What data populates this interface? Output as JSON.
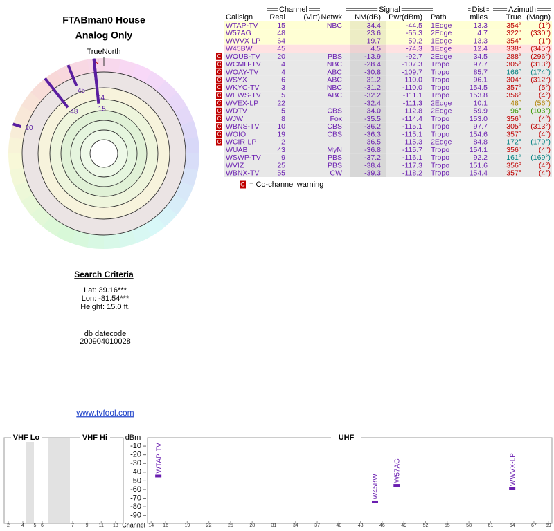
{
  "header": {
    "title": "FTABman0 House",
    "subtitle": "Analog Only"
  },
  "polar": {
    "north_label": "TrueNorth",
    "north": "N",
    "color": "#5a1ea0",
    "spokes": [
      {
        "label": "20",
        "azimuth": 288,
        "nm": -13.9
      },
      {
        "label": "48",
        "azimuth": 322,
        "nm": 23.6
      },
      {
        "label": "45",
        "azimuth": 338,
        "nm": 4.5
      },
      {
        "label": "64",
        "azimuth": 354,
        "nm": 19.7
      },
      {
        "label": "15",
        "azimuth": 354,
        "nm": 34.4
      }
    ]
  },
  "search": {
    "title": "Search Criteria",
    "lat": "Lat: 39.16***",
    "lon": "Lon: -81.54***",
    "height": "Height: 15.0 ft.",
    "datecode_label": "db datecode",
    "datecode": "200904010028",
    "link": "www.tvfool.com"
  },
  "table": {
    "groups": {
      "channel": "Channel",
      "signal": "Signal",
      "dist": "Dist",
      "azimuth": "Azimuth"
    },
    "columns": {
      "callsign": "Callsign",
      "real": "Real",
      "virt": "(Virt)",
      "netwk": "Netwk",
      "nm": "NM(dB)",
      "pwr": "Pwr(dBm)",
      "path": "Path",
      "dist": "miles",
      "true": "True",
      "magn": "(Magn)"
    },
    "rows": [
      {
        "callsign": "WTAP-TV",
        "real": "15",
        "netwk": "NBC",
        "nm": "34.4",
        "pwr": "-44.5",
        "path": "1Edge",
        "dist": "13.3",
        "true": "354°",
        "magn": "(1°)",
        "bg": "#ffffd4",
        "az_color": "#c00000"
      },
      {
        "callsign": "W57AG",
        "real": "48",
        "nm": "23.6",
        "pwr": "-55.3",
        "path": "2Edge",
        "dist": "4.7",
        "true": "322°",
        "magn": "(330°)",
        "bg": "#ffffd4",
        "az_color": "#c00000"
      },
      {
        "callsign": "WWVX-LP",
        "real": "64",
        "nm": "19.7",
        "pwr": "-59.2",
        "path": "1Edge",
        "dist": "13.3",
        "true": "354°",
        "magn": "(1°)",
        "bg": "#ffffd4",
        "az_color": "#c00000"
      },
      {
        "callsign": "W45BW",
        "real": "45",
        "nm": "4.5",
        "pwr": "-74.3",
        "path": "1Edge",
        "dist": "12.4",
        "true": "338°",
        "magn": "(345°)",
        "bg": "#ffe2e2",
        "az_color": "#c00000"
      },
      {
        "callsign": "WOUB-TV",
        "real": "20",
        "netwk": "PBS",
        "nm": "-13.9",
        "pwr": "-92.7",
        "path": "2Edge",
        "dist": "34.5",
        "true": "288°",
        "magn": "(296°)",
        "bg": "#e8e8e8",
        "az_color": "#c00000",
        "cochannel": true
      },
      {
        "callsign": "WCMH-TV",
        "real": "4",
        "netwk": "NBC",
        "nm": "-28.4",
        "pwr": "-107.3",
        "path": "Tropo",
        "dist": "97.7",
        "true": "305°",
        "magn": "(313°)",
        "bg": "#e8e8e8",
        "az_color": "#c00000",
        "cochannel": true
      },
      {
        "callsign": "WOAY-TV",
        "real": "4",
        "netwk": "ABC",
        "nm": "-30.8",
        "pwr": "-109.7",
        "path": "Tropo",
        "dist": "85.7",
        "true": "166°",
        "magn": "(174°)",
        "bg": "#e8e8e8",
        "az_color": "#008080",
        "cochannel": true
      },
      {
        "callsign": "WSYX",
        "real": "6",
        "netwk": "ABC",
        "nm": "-31.2",
        "pwr": "-110.0",
        "path": "Tropo",
        "dist": "96.1",
        "true": "304°",
        "magn": "(312°)",
        "bg": "#e8e8e8",
        "az_color": "#c00000",
        "cochannel": true
      },
      {
        "callsign": "WKYC-TV",
        "real": "3",
        "netwk": "NBC",
        "nm": "-31.2",
        "pwr": "-110.0",
        "path": "Tropo",
        "dist": "154.5",
        "true": "357°",
        "magn": "(5°)",
        "bg": "#e8e8e8",
        "az_color": "#c00000",
        "cochannel": true
      },
      {
        "callsign": "WEWS-TV",
        "real": "5",
        "netwk": "ABC",
        "nm": "-32.2",
        "pwr": "-111.1",
        "path": "Tropo",
        "dist": "153.8",
        "true": "356°",
        "magn": "(4°)",
        "bg": "#e8e8e8",
        "az_color": "#c00000",
        "cochannel": true
      },
      {
        "callsign": "WVEX-LP",
        "real": "22",
        "nm": "-32.4",
        "pwr": "-111.3",
        "path": "2Edge",
        "dist": "10.1",
        "true": "48°",
        "magn": "(56°)",
        "bg": "#e8e8e8",
        "az_color": "#b08000",
        "cochannel": true
      },
      {
        "callsign": "WDTV",
        "real": "5",
        "netwk": "CBS",
        "nm": "-34.0",
        "pwr": "-112.8",
        "path": "2Edge",
        "dist": "59.9",
        "true": "96°",
        "magn": "(103°)",
        "bg": "#e8e8e8",
        "az_color": "#3a9a00",
        "cochannel": true
      },
      {
        "callsign": "WJW",
        "real": "8",
        "netwk": "Fox",
        "nm": "-35.5",
        "pwr": "-114.4",
        "path": "Tropo",
        "dist": "153.0",
        "true": "356°",
        "magn": "(4°)",
        "bg": "#e8e8e8",
        "az_color": "#c00000",
        "cochannel": true
      },
      {
        "callsign": "WBNS-TV",
        "real": "10",
        "netwk": "CBS",
        "nm": "-36.2",
        "pwr": "-115.1",
        "path": "Tropo",
        "dist": "97.7",
        "true": "305°",
        "magn": "(313°)",
        "bg": "#e8e8e8",
        "az_color": "#c00000",
        "cochannel": true
      },
      {
        "callsign": "WOIO",
        "real": "19",
        "netwk": "CBS",
        "nm": "-36.3",
        "pwr": "-115.1",
        "path": "Tropo",
        "dist": "154.6",
        "true": "357°",
        "magn": "(4°)",
        "bg": "#e8e8e8",
        "az_color": "#c00000",
        "cochannel": true
      },
      {
        "callsign": "WCIR-LP",
        "real": "2",
        "nm": "-36.5",
        "pwr": "-115.3",
        "path": "2Edge",
        "dist": "84.8",
        "true": "172°",
        "magn": "(179°)",
        "bg": "#e8e8e8",
        "az_color": "#008080",
        "cochannel": true
      },
      {
        "callsign": "WUAB",
        "real": "43",
        "netwk": "MyN",
        "nm": "-36.8",
        "pwr": "-115.7",
        "path": "Tropo",
        "dist": "154.1",
        "true": "356°",
        "magn": "(4°)",
        "bg": "#e8e8e8",
        "az_color": "#c00000"
      },
      {
        "callsign": "WSWP-TV",
        "real": "9",
        "netwk": "PBS",
        "nm": "-37.2",
        "pwr": "-116.1",
        "path": "Tropo",
        "dist": "92.2",
        "true": "161°",
        "magn": "(169°)",
        "bg": "#e8e8e8",
        "az_color": "#008080"
      },
      {
        "callsign": "WVIZ",
        "real": "25",
        "netwk": "PBS",
        "nm": "-38.4",
        "pwr": "-117.3",
        "path": "Tropo",
        "dist": "151.6",
        "true": "356°",
        "magn": "(4°)",
        "bg": "#e8e8e8",
        "az_color": "#c00000"
      },
      {
        "callsign": "WBNX-TV",
        "real": "55",
        "netwk": "CW",
        "nm": "-39.3",
        "pwr": "-118.2",
        "path": "Tropo",
        "dist": "154.4",
        "true": "357°",
        "magn": "(4°)",
        "bg": "#e8e8e8",
        "az_color": "#c00000"
      }
    ]
  },
  "legend": {
    "symbol": "C",
    "text": "= Co-channel warning"
  },
  "chart_data": {
    "type": "scatter",
    "sections": [
      "VHF Lo",
      "VHF Hi",
      "UHF"
    ],
    "y_label": "dBm",
    "x_label": "Channel",
    "x": [
      15,
      45,
      48,
      64
    ],
    "values": [
      -44.5,
      -74.3,
      -55.3,
      -59.2
    ],
    "labels": [
      "WTAP-TV",
      "W45BW",
      "W57AG",
      "WWVX-LP"
    ],
    "color": "#6a1eb0",
    "ylim": [
      -95,
      0
    ],
    "yticks": [
      -10,
      -20,
      -30,
      -40,
      -50,
      -60,
      -70,
      -80,
      -90
    ],
    "xlim": [
      13.5,
      69.5
    ],
    "xticks": [
      14,
      16,
      19,
      22,
      25,
      28,
      31,
      34,
      37,
      40,
      43,
      46,
      49,
      52,
      55,
      58,
      61,
      64,
      67,
      69
    ],
    "vhf_xticks": [
      2,
      4,
      5,
      6,
      7,
      9,
      11,
      13
    ]
  }
}
